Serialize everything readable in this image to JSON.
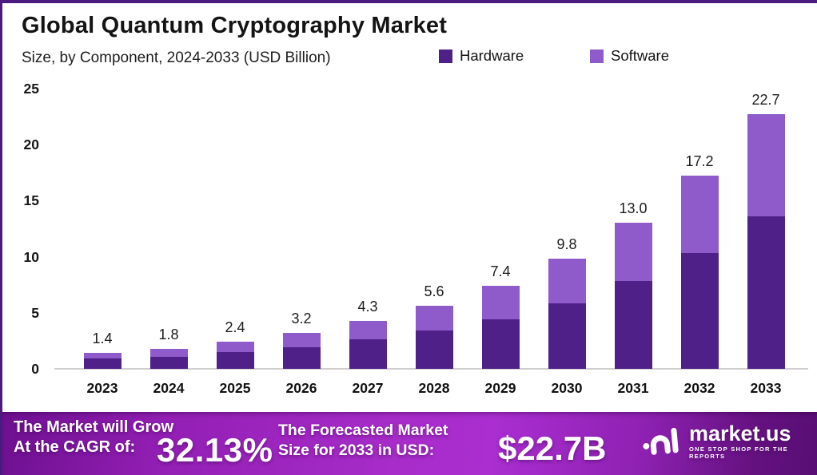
{
  "header": {
    "title": "Global Quantum Cryptography Market",
    "subtitle": "Size, by Component, 2024-2033 (USD Billion)"
  },
  "legend": [
    {
      "label": "Hardware",
      "color": "#4e2088"
    },
    {
      "label": "Software",
      "color": "#8f5bcb"
    }
  ],
  "chart_data": {
    "type": "bar",
    "stacked": true,
    "title": "Global Quantum Cryptography Market",
    "subtitle": "Size, by Component, 2024-2033 (USD Billion)",
    "categories": [
      "2023",
      "2024",
      "2025",
      "2026",
      "2027",
      "2028",
      "2029",
      "2030",
      "2031",
      "2032",
      "2033"
    ],
    "series": [
      {
        "name": "Hardware",
        "color": "#4e2088",
        "values": [
          0.9,
          1.1,
          1.5,
          1.9,
          2.6,
          3.4,
          4.4,
          5.8,
          7.8,
          10.3,
          13.6
        ]
      },
      {
        "name": "Software",
        "color": "#8f5bcb",
        "values": [
          0.5,
          0.7,
          0.9,
          1.3,
          1.7,
          2.2,
          3.0,
          4.0,
          5.2,
          6.9,
          9.1
        ]
      }
    ],
    "totals": [
      "1.4",
      "1.8",
      "2.4",
      "3.2",
      "4.3",
      "5.6",
      "7.4",
      "9.8",
      "13.0",
      "17.2",
      "22.7"
    ],
    "xlabel": "",
    "ylabel": "",
    "ylim": [
      0,
      25
    ],
    "yticks": [
      0,
      5,
      10,
      15,
      20,
      25
    ],
    "grid": false,
    "legend_position": "top-right"
  },
  "footer": {
    "growth_line1": "The Market will Grow",
    "growth_line2": "At the CAGR of:",
    "cagr": "32.13%",
    "forecast_line1": "The Forecasted Market",
    "forecast_line2": "Size for 2033 in USD:",
    "forecast_value": "$22.7B",
    "brand": "market.us",
    "brand_tagline": "ONE STOP SHOP FOR THE REPORTS"
  },
  "colors": {
    "hardware": "#4e2088",
    "software": "#8f5bcb",
    "page_border": "#4a1a7e",
    "footer_gradient_start": "#6e1090",
    "footer_gradient_mid": "#aa2ed0",
    "footer_gradient_end": "#570e73",
    "axis_line": "#cfcccc",
    "text": "#141414"
  }
}
